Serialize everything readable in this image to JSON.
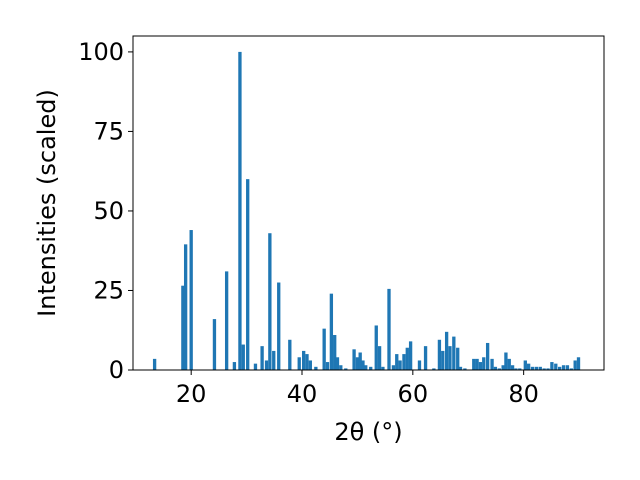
{
  "chart_data": {
    "type": "bar",
    "title": "",
    "xlabel": "2θ (°)",
    "ylabel": "Intensities (scaled)",
    "xlim": [
      9.5,
      94.5
    ],
    "ylim": [
      0,
      105
    ],
    "xticks": [
      20,
      40,
      60,
      80
    ],
    "yticks": [
      0,
      25,
      50,
      75,
      100
    ],
    "grid": false,
    "bar_color": "#1f77b4",
    "x": [
      13.4,
      18.5,
      19.0,
      20.0,
      24.2,
      26.4,
      27.8,
      28.8,
      29.4,
      30.2,
      31.6,
      32.8,
      33.6,
      34.2,
      34.9,
      35.8,
      37.8,
      39.5,
      40.3,
      40.9,
      41.5,
      42.5,
      44.0,
      44.6,
      45.3,
      45.9,
      46.4,
      47.0,
      47.9,
      49.4,
      50.0,
      50.5,
      51.0,
      51.5,
      52.4,
      53.4,
      54.0,
      54.6,
      55.7,
      56.5,
      57.1,
      57.7,
      58.4,
      59.0,
      59.6,
      61.2,
      62.3,
      63.8,
      64.8,
      65.4,
      66.1,
      66.7,
      67.4,
      68.1,
      68.6,
      69.4,
      71.0,
      71.6,
      72.2,
      72.8,
      73.5,
      74.3,
      74.9,
      75.6,
      76.3,
      76.8,
      77.4,
      78.0,
      78.6,
      79.3,
      80.3,
      80.9,
      81.6,
      82.3,
      83.0,
      83.7,
      84.4,
      85.1,
      85.8,
      86.5,
      87.2,
      87.9,
      88.6,
      89.3,
      89.9
    ],
    "values": [
      3.5,
      26.5,
      39.5,
      44.0,
      16.0,
      31.0,
      2.5,
      100.0,
      8.0,
      60.0,
      2.0,
      7.5,
      3.0,
      43.0,
      6.0,
      27.5,
      9.5,
      4.0,
      6.0,
      5.0,
      3.0,
      1.0,
      13.0,
      2.5,
      24.0,
      11.0,
      4.0,
      1.5,
      0.5,
      6.5,
      4.0,
      5.5,
      3.0,
      1.5,
      1.0,
      14.0,
      7.5,
      1.0,
      25.5,
      1.5,
      5.0,
      3.0,
      5.0,
      7.0,
      9.0,
      3.0,
      7.5,
      0.5,
      9.5,
      6.0,
      12.0,
      7.5,
      10.5,
      7.0,
      1.0,
      0.5,
      3.5,
      3.5,
      2.5,
      4.0,
      8.5,
      3.5,
      1.0,
      0.5,
      1.5,
      5.5,
      3.5,
      1.5,
      0.5,
      0.5,
      3.0,
      2.0,
      1.0,
      1.0,
      1.0,
      0.5,
      0.5,
      2.5,
      2.0,
      1.0,
      1.5,
      1.5,
      0.5,
      3.0,
      4.0
    ]
  }
}
